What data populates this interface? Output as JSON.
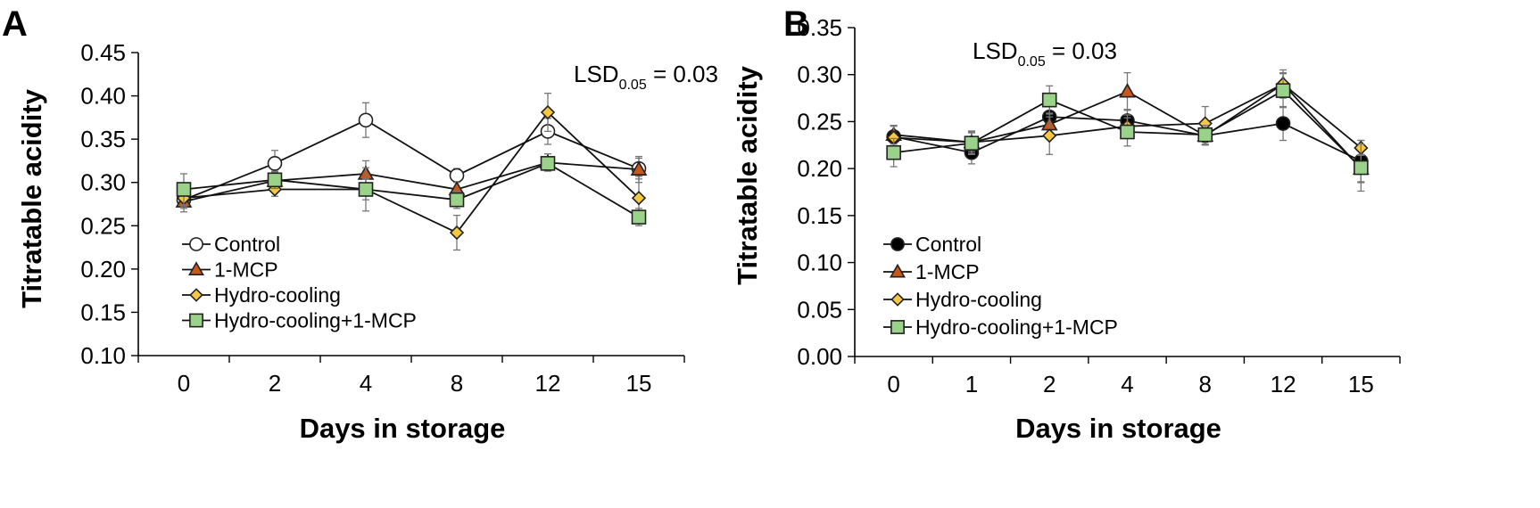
{
  "chart_data": [
    {
      "panel": "A",
      "type": "line",
      "categories": [
        "0",
        "2",
        "4",
        "8",
        "12",
        "15"
      ],
      "ylim": [
        0.1,
        0.45
      ],
      "yticks": [
        "0.10",
        "0.15",
        "0.20",
        "0.25",
        "0.30",
        "0.35",
        "0.40",
        "0.45"
      ],
      "xlabel": "Days in storage",
      "ylabel": "Titratable acidity",
      "annotation": {
        "main": "LSD",
        "sub": "0.05",
        "tail": " = 0.03"
      },
      "legend_position": "bottom-left",
      "series": [
        {
          "name": "Control",
          "marker": "circle",
          "fill": "#ffffff",
          "values": [
            0.28,
            0.322,
            0.372,
            0.308,
            0.359,
            0.316
          ],
          "errors": [
            0.01,
            0.015,
            0.02,
            0.008,
            0.015,
            0.012
          ]
        },
        {
          "name": "1-MCP",
          "marker": "triangle",
          "fill": "#c8571b",
          "values": [
            0.278,
            0.302,
            0.31,
            0.292,
            0.323,
            0.315
          ],
          "errors": [
            0.012,
            0.01,
            0.015,
            0.008,
            0.01,
            0.015
          ]
        },
        {
          "name": "Hydro-cooling",
          "marker": "diamond",
          "fill": "#f5c93f",
          "values": [
            0.282,
            0.292,
            0.292,
            0.242,
            0.381,
            0.282
          ],
          "errors": [
            0.01,
            0.008,
            0.012,
            0.02,
            0.022,
            0.025
          ]
        },
        {
          "name": "Hydro-cooling+1-MCP",
          "marker": "square",
          "fill": "#9bd28a",
          "values": [
            0.292,
            0.303,
            0.292,
            0.28,
            0.322,
            0.26
          ],
          "errors": [
            0.018,
            0.01,
            0.025,
            0.01,
            0.005,
            0.01
          ]
        }
      ]
    },
    {
      "panel": "B",
      "type": "line",
      "categories": [
        "0",
        "1",
        "2",
        "4",
        "8",
        "12",
        "15"
      ],
      "ylim": [
        0.0,
        0.35
      ],
      "yticks": [
        "0.00",
        "0.05",
        "0.10",
        "0.15",
        "0.20",
        "0.25",
        "0.30",
        "0.35"
      ],
      "xlabel": "Days in storage",
      "ylabel": "Titratable acidity",
      "annotation": {
        "main": "LSD",
        "sub": "0.05",
        "tail": " = 0.03"
      },
      "legend_position": "bottom-left",
      "series": [
        {
          "name": "Control",
          "marker": "circle",
          "fill": "#000000",
          "values": [
            0.234,
            0.217,
            0.255,
            0.251,
            0.235,
            0.248,
            0.208
          ],
          "errors": [
            0.012,
            0.012,
            0.012,
            0.012,
            0.01,
            0.018,
            0.022
          ]
        },
        {
          "name": "1-MCP",
          "marker": "triangle",
          "fill": "#c8571b",
          "values": [
            0.236,
            0.228,
            0.247,
            0.282,
            0.235,
            0.29,
            0.2
          ],
          "errors": [
            0.01,
            0.01,
            0.012,
            0.02,
            0.01,
            0.012,
            0.015
          ]
        },
        {
          "name": "Hydro-cooling",
          "marker": "diamond",
          "fill": "#f5c93f",
          "values": [
            0.233,
            0.228,
            0.235,
            0.245,
            0.248,
            0.29,
            0.222
          ],
          "errors": [
            0.012,
            0.012,
            0.02,
            0.012,
            0.018,
            0.015,
            0.008
          ]
        },
        {
          "name": "Hydro-cooling+1-MCP",
          "marker": "square",
          "fill": "#9bd28a",
          "values": [
            0.217,
            0.227,
            0.273,
            0.239,
            0.236,
            0.283,
            0.201
          ],
          "errors": [
            0.015,
            0.012,
            0.015,
            0.015,
            0.01,
            0.018,
            0.025
          ]
        }
      ]
    }
  ]
}
